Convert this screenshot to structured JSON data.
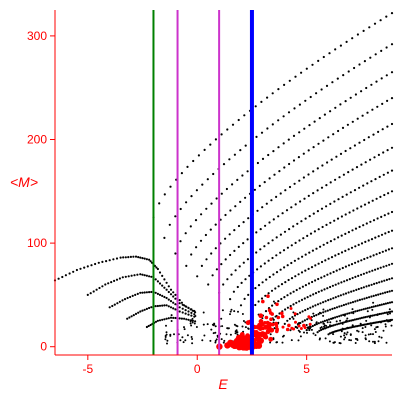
{
  "chart_data": {
    "type": "scatter",
    "title": "",
    "xlabel": "E",
    "ylabel": "<M>",
    "xlim": [
      -6.5,
      8.9
    ],
    "ylim": [
      -8,
      325
    ],
    "x_ticks": [
      -5,
      0,
      5
    ],
    "y_ticks": [
      0,
      100,
      200,
      300
    ],
    "grid": false,
    "vertical_lines": [
      {
        "x": -2.0,
        "color": "#008000",
        "width": 2
      },
      {
        "x": -0.9,
        "color": "#cc33cc",
        "width": 2
      },
      {
        "x": 1.0,
        "color": "#cc33cc",
        "width": 2
      },
      {
        "x": 2.5,
        "color": "#0000ff",
        "width": 4
      }
    ],
    "series": [
      {
        "color": "#000000",
        "marker": "dot",
        "branches": [
          {
            "from": [
              -2.0,
              125
            ],
            "to": [
              8.9,
              322
            ]
          },
          {
            "from": [
              -1.5,
              105
            ],
            "to": [
              8.9,
              292
            ]
          },
          {
            "from": [
              -1.0,
              90
            ],
            "to": [
              8.9,
              265
            ]
          },
          {
            "from": [
              -0.5,
              78
            ],
            "to": [
              8.9,
              240
            ]
          },
          {
            "from": [
              0.0,
              68
            ],
            "to": [
              8.9,
              215
            ]
          },
          {
            "from": [
              0.5,
              60
            ],
            "to": [
              8.9,
              192
            ]
          },
          {
            "from": [
              1.0,
              52
            ],
            "to": [
              8.9,
              170
            ]
          },
          {
            "from": [
              1.5,
              46
            ],
            "to": [
              8.9,
              150
            ]
          },
          {
            "from": [
              2.0,
              40
            ],
            "to": [
              8.9,
              130
            ]
          },
          {
            "from": [
              2.5,
              35
            ],
            "to": [
              8.9,
              112
            ]
          },
          {
            "from": [
              3.0,
              30
            ],
            "to": [
              8.9,
              95
            ]
          },
          {
            "from": [
              3.5,
              26
            ],
            "to": [
              8.9,
              80
            ]
          },
          {
            "from": [
              4.0,
              22
            ],
            "to": [
              8.9,
              66
            ]
          },
          {
            "from": [
              4.5,
              19
            ],
            "to": [
              8.9,
              54
            ]
          },
          {
            "from": [
              5.0,
              16
            ],
            "to": [
              8.9,
              43
            ]
          },
          {
            "from": [
              5.5,
              14
            ],
            "to": [
              8.9,
              34
            ]
          },
          {
            "from": [
              6.0,
              12
            ],
            "to": [
              8.9,
              26
            ]
          }
        ],
        "low_branches": [
          {
            "points": [
              [
                -6.5,
                64
              ],
              [
                -5.5,
                74
              ],
              [
                -4.5,
                81
              ],
              [
                -3.5,
                86
              ],
              [
                -2.8,
                87
              ],
              [
                -2.2,
                84
              ],
              [
                -1.8,
                75
              ],
              [
                -1.2,
                55
              ],
              [
                -0.6,
                40
              ],
              [
                0.0,
                32
              ]
            ]
          },
          {
            "points": [
              [
                -5.0,
                50
              ],
              [
                -4.2,
                60
              ],
              [
                -3.4,
                67
              ],
              [
                -2.6,
                70
              ],
              [
                -2.0,
                67
              ],
              [
                -1.4,
                55
              ],
              [
                -0.8,
                42
              ],
              [
                0.0,
                33
              ]
            ]
          },
          {
            "points": [
              [
                -4.0,
                38
              ],
              [
                -3.3,
                46
              ],
              [
                -2.6,
                52
              ],
              [
                -2.0,
                53
              ],
              [
                -1.4,
                47
              ],
              [
                -0.8,
                38
              ],
              [
                0.0,
                30
              ]
            ]
          },
          {
            "points": [
              [
                -3.2,
                27
              ],
              [
                -2.6,
                34
              ],
              [
                -2.0,
                39
              ],
              [
                -1.4,
                40
              ],
              [
                -0.8,
                34
              ],
              [
                0.0,
                28
              ]
            ]
          },
          {
            "points": [
              [
                -2.3,
                19
              ],
              [
                -1.8,
                25
              ],
              [
                -1.2,
                28
              ],
              [
                -0.6,
                27
              ],
              [
                0.0,
                24
              ]
            ]
          }
        ],
        "bottom_band": {
          "xmin": -1.5,
          "xmax": 8.9,
          "ymin": 3,
          "ymax": 45
        }
      },
      {
        "color": "#ff0000",
        "marker": "dot",
        "clusters": [
          {
            "center": [
              2.2,
              2
            ],
            "spread": [
              0.7,
              4
            ],
            "count": 70,
            "size": 3.2
          },
          {
            "center": [
              2.7,
              12
            ],
            "spread": [
              0.6,
              10
            ],
            "count": 40,
            "size": 2.4
          },
          {
            "center": [
              3.4,
              22
            ],
            "spread": [
              0.9,
              14
            ],
            "count": 30,
            "size": 1.8
          },
          {
            "center": [
              4.4,
              20
            ],
            "spread": [
              1.0,
              8
            ],
            "count": 14,
            "size": 1.5
          }
        ]
      }
    ]
  }
}
